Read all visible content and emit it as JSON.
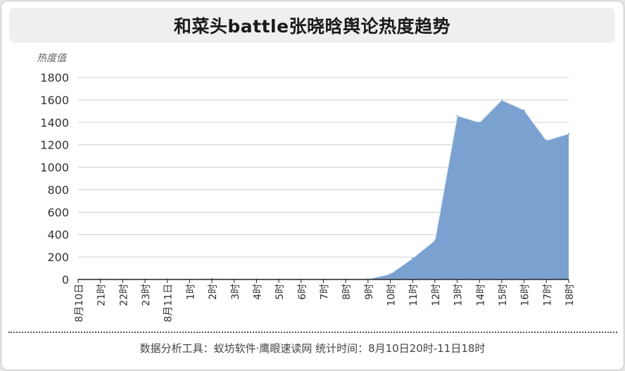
{
  "title": "和菜头battle张晓晗舆论热度趋势",
  "footer": "数据分析工具：蚁坊软件·鹰眼速读网   统计时间：8月10日20时-11日18时",
  "colors": {
    "area_fill": "#7aa1cf",
    "area_line": "#e9f0f8",
    "grid": "#cfcfcf"
  },
  "chart_data": {
    "type": "area",
    "ylabel": "热度值",
    "ylim": [
      0,
      1800
    ],
    "yticks": [
      0,
      200,
      400,
      600,
      800,
      1000,
      1200,
      1400,
      1600,
      1800
    ],
    "grid": true,
    "categories": [
      "8月10日",
      "21时",
      "22时",
      "23时",
      "8月11日",
      "1时",
      "2时",
      "3时",
      "4时",
      "5时",
      "6时",
      "7时",
      "8时",
      "9时",
      "10时",
      "11时",
      "12时",
      "13时",
      "14时",
      "15时",
      "16时",
      "17时",
      "18时"
    ],
    "values": [
      0,
      5,
      3,
      2,
      3,
      2,
      8,
      2,
      2,
      2,
      2,
      2,
      2,
      5,
      50,
      190,
      350,
      1460,
      1400,
      1600,
      1510,
      1240,
      1300
    ]
  }
}
